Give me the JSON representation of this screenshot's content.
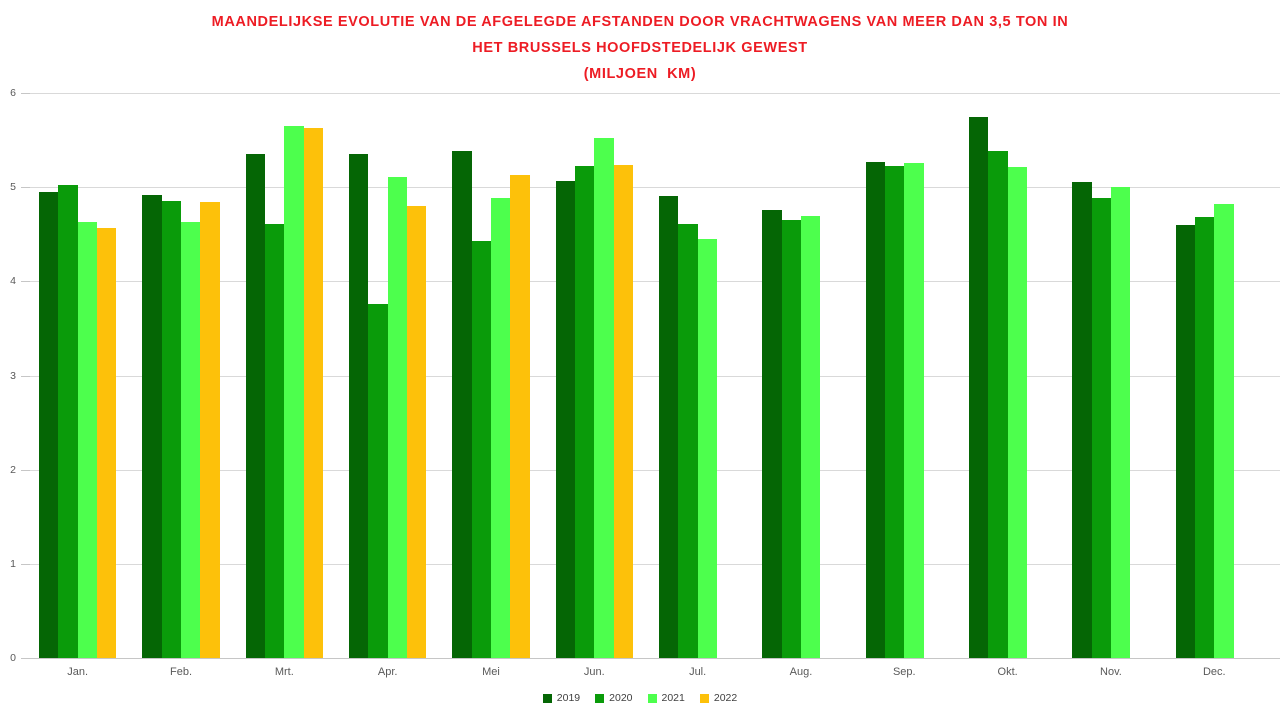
{
  "title": {
    "lines": [
      "MAANDELIJKSE EVOLUTIE VAN DE AFGELEGDE AFSTANDEN DOOR VRACHTWAGENS VAN MEER DAN 3,5 TON IN",
      "HET BRUSSELS HOOFDSTEDELIJK GEWEST",
      "(MILJOEN  KM)"
    ]
  },
  "chart_data": {
    "type": "bar",
    "title": "MAANDELIJKSE EVOLUTIE VAN DE AFGELEGDE AFSTANDEN DOOR VRACHTWAGENS VAN MEER DAN 3,5 TON IN HET BRUSSELS HOOFDSTEDELIJK GEWEST (MILJOEN KM)",
    "categories": [
      "Jan.",
      "Feb.",
      "Mrt.",
      "Apr.",
      "Mei",
      "Jun.",
      "Jul.",
      "Aug.",
      "Sep.",
      "Okt.",
      "Nov.",
      "Dec."
    ],
    "series": [
      {
        "name": "2019",
        "color": "#056605",
        "values": [
          4.95,
          4.92,
          5.35,
          5.35,
          5.38,
          5.07,
          4.91,
          4.76,
          5.27,
          5.75,
          5.05,
          4.6
        ]
      },
      {
        "name": "2020",
        "color": "#0A9B0A",
        "values": [
          5.02,
          4.85,
          4.61,
          3.76,
          4.43,
          5.23,
          4.61,
          4.65,
          5.22,
          5.38,
          4.89,
          4.68
        ]
      },
      {
        "name": "2021",
        "color": "#4DFF4D",
        "values": [
          4.63,
          4.63,
          5.65,
          5.11,
          4.88,
          5.52,
          4.45,
          4.69,
          5.26,
          5.21,
          5.0,
          4.82
        ]
      },
      {
        "name": "2022",
        "color": "#FDC10A",
        "values": [
          4.57,
          4.84,
          5.63,
          4.8,
          5.13,
          5.24,
          null,
          null,
          null,
          null,
          null,
          null
        ]
      }
    ],
    "xlabel": "",
    "ylabel": "",
    "ylim": [
      0,
      6
    ],
    "yticks": [
      0,
      1,
      2,
      3,
      4,
      5,
      6
    ],
    "grid": true,
    "legend_position": "bottom"
  },
  "colors": {
    "title_text": "#ED1C24",
    "gridline": "#D9D9D9",
    "axis_text": "#595959",
    "legend_text": "#404040",
    "background": "#FFFFFF"
  }
}
